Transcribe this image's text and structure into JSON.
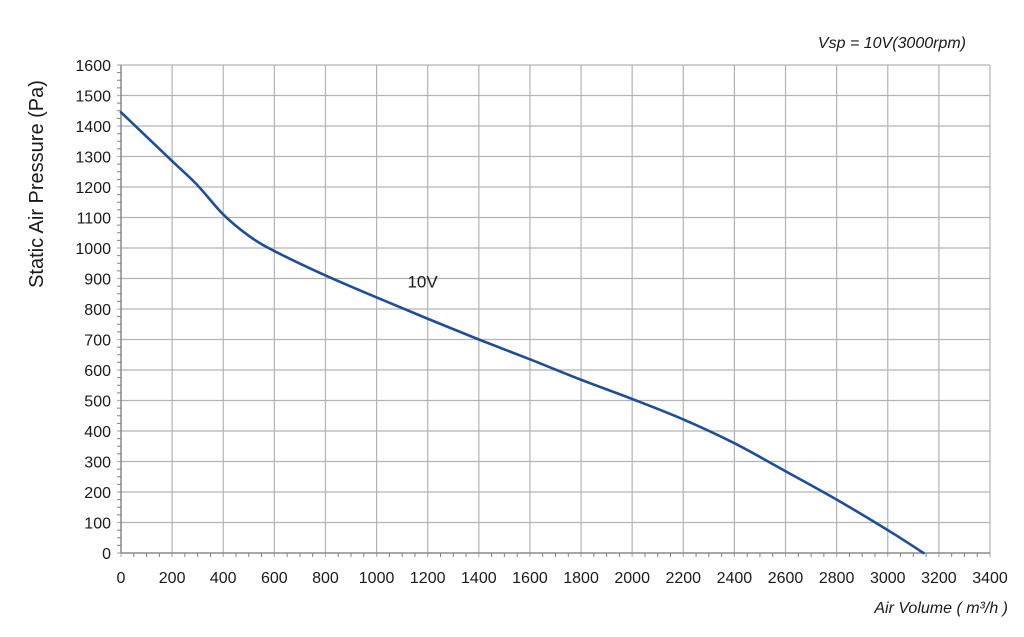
{
  "chart_data": {
    "type": "line",
    "subtitle": "Vsp = 10V(3000rpm)",
    "xlabel": "Air Volume ( m³/h )",
    "ylabel": "Static Air Pressure  (Pa)",
    "xlim": [
      0,
      3400
    ],
    "ylim": [
      0,
      1600
    ],
    "x_ticks": [
      "0",
      "200",
      "400",
      "600",
      "800",
      "1000",
      "1200",
      "1400",
      "1600",
      "1800",
      "2000",
      "2200",
      "2400",
      "2600",
      "2800",
      "3000",
      "3200",
      "3400"
    ],
    "y_ticks": [
      "0",
      "100",
      "200",
      "300",
      "400",
      "500",
      "600",
      "700",
      "800",
      "900",
      "1000",
      "1100",
      "1200",
      "1300",
      "1400",
      "1500",
      "1600"
    ],
    "grid": true,
    "colors": {
      "line": "#1f4e99",
      "grid": "#b3b3b3",
      "axis": "#808080"
    },
    "series": [
      {
        "label": "10V",
        "label_at": {
          "x": 1180,
          "y": 870
        },
        "points": [
          [
            0,
            1445
          ],
          [
            100,
            1365
          ],
          [
            200,
            1285
          ],
          [
            300,
            1205
          ],
          [
            400,
            1110
          ],
          [
            500,
            1040
          ],
          [
            600,
            990
          ],
          [
            800,
            910
          ],
          [
            1000,
            838
          ],
          [
            1200,
            768
          ],
          [
            1400,
            700
          ],
          [
            1600,
            635
          ],
          [
            1800,
            568
          ],
          [
            2000,
            505
          ],
          [
            2200,
            438
          ],
          [
            2400,
            360
          ],
          [
            2600,
            268
          ],
          [
            2800,
            175
          ],
          [
            3000,
            75
          ],
          [
            3140,
            0
          ]
        ]
      }
    ]
  }
}
